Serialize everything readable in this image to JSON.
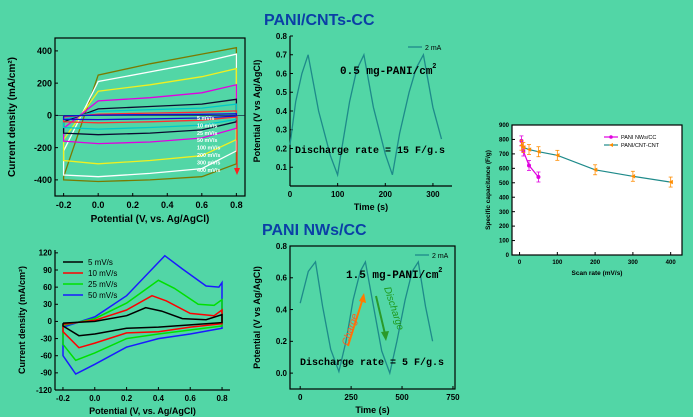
{
  "section_titles": {
    "top": "PANI/CNTs-CC",
    "bottom": "PANI NWs/CC"
  },
  "colors": {
    "background": "#52d6a6",
    "title": "#0b3fa6"
  },
  "chart_data": [
    {
      "id": "cv-top",
      "type": "line",
      "xlabel": "Potential (V, vs. Ag/AgCl)",
      "ylabel": "Current density (mA/cm²)",
      "xlim": [
        -0.25,
        0.85
      ],
      "ylim": [
        -500,
        480
      ],
      "xticks": [
        -0.2,
        0.0,
        0.2,
        0.4,
        0.6,
        0.8
      ],
      "xtick_labels": [
        "-0.2",
        "0.0",
        "0.2",
        "0.4",
        "0.6",
        "0.8"
      ],
      "yticks": [
        -400,
        -200,
        0,
        200,
        400
      ],
      "ytick_labels": [
        "-400",
        "-200",
        "0",
        "200",
        "400"
      ],
      "legend": [
        "5 mV/s",
        "10 mV/s",
        "25 mV/s",
        "50 mV/s",
        "100 mV/s",
        "200 mV/s",
        "300 mV/s",
        "400 mV/s"
      ],
      "legend_position": "right",
      "series": [
        {
          "name": "5 mV/s",
          "color": "#1010d0",
          "anodic": [
            [
              -0.2,
              -4
            ],
            [
              0.0,
              2
            ],
            [
              0.3,
              5
            ],
            [
              0.6,
              7
            ],
            [
              0.8,
              10
            ]
          ],
          "cathodic": [
            [
              0.8,
              -4
            ],
            [
              0.6,
              -16
            ],
            [
              0.3,
              -22
            ],
            [
              0.0,
              -26
            ],
            [
              -0.2,
              -24
            ]
          ]
        },
        {
          "name": "10 mV/s",
          "color": "#ff3030",
          "anodic": [
            [
              -0.2,
              -10
            ],
            [
              0.0,
              8
            ],
            [
              0.3,
              14
            ],
            [
              0.6,
              20
            ],
            [
              0.8,
              28
            ]
          ],
          "cathodic": [
            [
              0.8,
              -10
            ],
            [
              0.6,
              -30
            ],
            [
              0.3,
              -40
            ],
            [
              0.0,
              -46
            ],
            [
              -0.2,
              -40
            ]
          ]
        },
        {
          "name": "25 mV/s",
          "color": "#00c8c8",
          "anodic": [
            [
              -0.2,
              -25
            ],
            [
              0.0,
              25
            ],
            [
              0.3,
              35
            ],
            [
              0.6,
              45
            ],
            [
              0.8,
              70
            ]
          ],
          "cathodic": [
            [
              0.8,
              -25
            ],
            [
              0.6,
              -60
            ],
            [
              0.3,
              -75
            ],
            [
              0.0,
              -85
            ],
            [
              -0.2,
              -75
            ]
          ]
        },
        {
          "name": "50 mV/s",
          "color": "#0a0a30",
          "anodic": [
            [
              -0.2,
              -40
            ],
            [
              0.0,
              40
            ],
            [
              0.3,
              55
            ],
            [
              0.6,
              70
            ],
            [
              0.8,
              100
            ]
          ],
          "cathodic": [
            [
              0.8,
              -40
            ],
            [
              0.6,
              -90
            ],
            [
              0.3,
              -110
            ],
            [
              0.0,
              -120
            ],
            [
              -0.2,
              -110
            ]
          ]
        },
        {
          "name": "100 mV/s",
          "color": "#e000e0",
          "anodic": [
            [
              -0.2,
              -80
            ],
            [
              0.0,
              90
            ],
            [
              0.3,
              110
            ],
            [
              0.6,
              140
            ],
            [
              0.8,
              190
            ]
          ],
          "cathodic": [
            [
              0.8,
              -80
            ],
            [
              0.6,
              -140
            ],
            [
              0.3,
              -165
            ],
            [
              0.0,
              -175
            ],
            [
              -0.2,
              -160
            ]
          ]
        },
        {
          "name": "200 mV/s",
          "color": "#f0f020",
          "anodic": [
            [
              -0.2,
              -150
            ],
            [
              0.0,
              150
            ],
            [
              0.3,
              190
            ],
            [
              0.6,
              240
            ],
            [
              0.8,
              290
            ]
          ],
          "cathodic": [
            [
              0.8,
              -150
            ],
            [
              0.6,
              -250
            ],
            [
              0.3,
              -280
            ],
            [
              0.0,
              -300
            ],
            [
              -0.2,
              -280
            ]
          ]
        },
        {
          "name": "300 mV/s",
          "color": "#ffffff",
          "anodic": [
            [
              -0.2,
              -220
            ],
            [
              0.0,
              210
            ],
            [
              0.3,
              270
            ],
            [
              0.6,
              330
            ],
            [
              0.8,
              380
            ]
          ],
          "cathodic": [
            [
              0.8,
              -220
            ],
            [
              0.6,
              -330
            ],
            [
              0.3,
              -360
            ],
            [
              0.0,
              -380
            ],
            [
              -0.2,
              -370
            ]
          ]
        },
        {
          "name": "400 mV/s",
          "color": "#7a7a00",
          "anodic": [
            [
              -0.2,
              -380
            ],
            [
              0.0,
              250
            ],
            [
              0.3,
              320
            ],
            [
              0.6,
              380
            ],
            [
              0.8,
              420
            ]
          ],
          "cathodic": [
            [
              0.8,
              -300
            ],
            [
              0.6,
              -380
            ],
            [
              0.3,
              -400
            ],
            [
              0.0,
              -410
            ],
            [
              -0.2,
              -400
            ]
          ]
        }
      ]
    },
    {
      "id": "gcd-top",
      "type": "line",
      "xlabel": "Time (s)",
      "ylabel": "Potential (V vs Ag/AgCl)",
      "xlim": [
        0,
        340
      ],
      "ylim": [
        0,
        0.8
      ],
      "xticks": [
        0,
        100,
        200,
        300
      ],
      "xtick_labels": [
        "0",
        "100",
        "200",
        "300"
      ],
      "yticks": [
        0.1,
        0.2,
        0.3,
        0.4,
        0.5,
        0.6,
        0.7,
        0.8
      ],
      "ytick_labels": [
        "0.1",
        "0.2",
        "0.3",
        "0.4",
        "0.5",
        "0.6",
        "0.7",
        "0.8"
      ],
      "legend": [
        "2 mA"
      ],
      "legend_position": "top-right",
      "annotations": [
        "0.5 mg-PANI/cm²",
        "Discharge rate = 15 F/g.s"
      ],
      "series": [
        {
          "name": "2 mA",
          "color": "#1e8a8a",
          "points": [
            [
              0,
              0.22
            ],
            [
              12,
              0.45
            ],
            [
              25,
              0.6
            ],
            [
              38,
              0.7
            ],
            [
              60,
              0.4
            ],
            [
              85,
              0.16
            ],
            [
              100,
              0.06
            ],
            [
              110,
              0.22
            ],
            [
              125,
              0.45
            ],
            [
              140,
              0.62
            ],
            [
              155,
              0.7
            ],
            [
              175,
              0.42
            ],
            [
              200,
              0.17
            ],
            [
              215,
              0.06
            ],
            [
              230,
              0.28
            ],
            [
              250,
              0.5
            ],
            [
              265,
              0.63
            ],
            [
              280,
              0.7
            ],
            [
              300,
              0.42
            ],
            [
              318,
              0.25
            ]
          ]
        }
      ]
    },
    {
      "id": "cv-bottom",
      "type": "line",
      "xlabel": "Potential (V, vs. Ag/AgCl)",
      "ylabel": "Current density (mA/cm²)",
      "xlim": [
        -0.25,
        0.85
      ],
      "ylim": [
        -120,
        125
      ],
      "xticks": [
        -0.2,
        0.0,
        0.2,
        0.4,
        0.6,
        0.8
      ],
      "xtick_labels": [
        "-0.2",
        "0.0",
        "0.2",
        "0.4",
        "0.6",
        "0.8"
      ],
      "yticks": [
        -120,
        -90,
        -60,
        -30,
        0,
        30,
        60,
        90,
        120
      ],
      "ytick_labels": [
        "-120",
        "-90",
        "-60",
        "-30",
        "0",
        "30",
        "60",
        "90",
        "120"
      ],
      "legend": [
        "5 mV/s",
        "10 mV/s",
        "25 mV/s",
        "50 mV/s"
      ],
      "legend_position": "top-left",
      "series": [
        {
          "name": "5 mV/s",
          "color": "#000000",
          "anodic": [
            [
              -0.2,
              -3
            ],
            [
              0.0,
              0
            ],
            [
              0.2,
              10
            ],
            [
              0.32,
              24
            ],
            [
              0.42,
              18
            ],
            [
              0.55,
              5
            ],
            [
              0.7,
              3
            ],
            [
              0.8,
              12
            ]
          ],
          "cathodic": [
            [
              0.8,
              -2
            ],
            [
              0.6,
              -6
            ],
            [
              0.4,
              -10
            ],
            [
              0.2,
              -12
            ],
            [
              0.0,
              -22
            ],
            [
              -0.1,
              -25
            ],
            [
              -0.2,
              -8
            ]
          ]
        },
        {
          "name": "10 mV/s",
          "color": "#ff0000",
          "anodic": [
            [
              -0.2,
              -5
            ],
            [
              0.0,
              2
            ],
            [
              0.2,
              20
            ],
            [
              0.36,
              45
            ],
            [
              0.45,
              36
            ],
            [
              0.6,
              14
            ],
            [
              0.75,
              10
            ],
            [
              0.8,
              20
            ]
          ],
          "cathodic": [
            [
              0.8,
              -4
            ],
            [
              0.6,
              -10
            ],
            [
              0.4,
              -18
            ],
            [
              0.2,
              -20
            ],
            [
              0.0,
              -38
            ],
            [
              -0.1,
              -46
            ],
            [
              -0.2,
              -18
            ]
          ]
        },
        {
          "name": "25 mV/s",
          "color": "#00e000",
          "anodic": [
            [
              -0.2,
              -7
            ],
            [
              0.0,
              5
            ],
            [
              0.2,
              32
            ],
            [
              0.4,
              72
            ],
            [
              0.5,
              58
            ],
            [
              0.65,
              30
            ],
            [
              0.75,
              28
            ],
            [
              0.8,
              38
            ]
          ],
          "cathodic": [
            [
              0.8,
              -8
            ],
            [
              0.6,
              -15
            ],
            [
              0.4,
              -22
            ],
            [
              0.2,
              -30
            ],
            [
              0.0,
              -55
            ],
            [
              -0.12,
              -68
            ],
            [
              -0.2,
              -40
            ]
          ]
        },
        {
          "name": "50 mV/s",
          "color": "#1a1aff",
          "anodic": [
            [
              -0.2,
              -10
            ],
            [
              0.0,
              8
            ],
            [
              0.2,
              45
            ],
            [
              0.44,
              115
            ],
            [
              0.55,
              92
            ],
            [
              0.7,
              62
            ],
            [
              0.78,
              60
            ],
            [
              0.8,
              68
            ]
          ],
          "cathodic": [
            [
              0.8,
              -12
            ],
            [
              0.6,
              -22
            ],
            [
              0.4,
              -30
            ],
            [
              0.2,
              -45
            ],
            [
              0.0,
              -75
            ],
            [
              -0.12,
              -92
            ],
            [
              -0.2,
              -60
            ]
          ]
        }
      ]
    },
    {
      "id": "gcd-bottom",
      "type": "line",
      "xlabel": "Time (s)",
      "ylabel": "Potential (V vs Ag/AgCl)",
      "xlim": [
        -50,
        760
      ],
      "ylim": [
        -0.1,
        0.8
      ],
      "xticks": [
        0,
        250,
        500,
        750
      ],
      "xtick_labels": [
        "0",
        "250",
        "500",
        "750"
      ],
      "yticks": [
        0.0,
        0.2,
        0.4,
        0.6,
        0.8
      ],
      "ytick_labels": [
        "0.0",
        "0.2",
        "0.4",
        "0.6",
        "0.8"
      ],
      "legend": [
        "2 mA"
      ],
      "legend_position": "top-right",
      "annotations": [
        "1.5 mg-PANI/cm²",
        "Discharge rate = 5 F/g.s",
        "Charge",
        "Discharge"
      ],
      "series": [
        {
          "name": "2 mA",
          "color": "#1e8a8a",
          "points": [
            [
              0,
              0.44
            ],
            [
              40,
              0.64
            ],
            [
              75,
              0.7
            ],
            [
              110,
              0.42
            ],
            [
              150,
              0.15
            ],
            [
              190,
              0.01
            ],
            [
              225,
              0.2
            ],
            [
              260,
              0.46
            ],
            [
              295,
              0.64
            ],
            [
              320,
              0.7
            ],
            [
              360,
              0.42
            ],
            [
              400,
              0.14
            ],
            [
              440,
              0.0
            ],
            [
              475,
              0.2
            ],
            [
              515,
              0.46
            ],
            [
              550,
              0.64
            ],
            [
              580,
              0.7
            ],
            [
              615,
              0.42
            ],
            [
              650,
              0.2
            ]
          ]
        }
      ]
    },
    {
      "id": "capacitance",
      "type": "line",
      "xlabel": "Scan rate (mV/s)",
      "ylabel": "Specific capacitance (F/g)",
      "xlim": [
        -20,
        430
      ],
      "ylim": [
        0,
        900
      ],
      "xticks": [
        0,
        100,
        200,
        300,
        400
      ],
      "xtick_labels": [
        "0",
        "100",
        "200",
        "300",
        "400"
      ],
      "yticks": [
        0,
        100,
        200,
        300,
        400,
        500,
        600,
        700,
        800,
        900
      ],
      "ytick_labels": [
        "0",
        "100",
        "200",
        "300",
        "400",
        "500",
        "600",
        "700",
        "800",
        "900"
      ],
      "legend": [
        "PANI NWs/CC",
        "PANI/CNT-CNT"
      ],
      "legend_position": "top-right",
      "series": [
        {
          "name": "PANI NWs/CC",
          "color": "#e000e0",
          "x": [
            5,
            10,
            25,
            50
          ],
          "y": [
            790,
            720,
            620,
            540
          ]
        },
        {
          "name": "PANI/CNT-CNT",
          "color": "#1e8a8a",
          "marker_color": "#ff8c00",
          "x": [
            5,
            10,
            25,
            50,
            100,
            200,
            300,
            400
          ],
          "y": [
            760,
            745,
            730,
            715,
            690,
            590,
            545,
            505
          ]
        }
      ]
    }
  ]
}
